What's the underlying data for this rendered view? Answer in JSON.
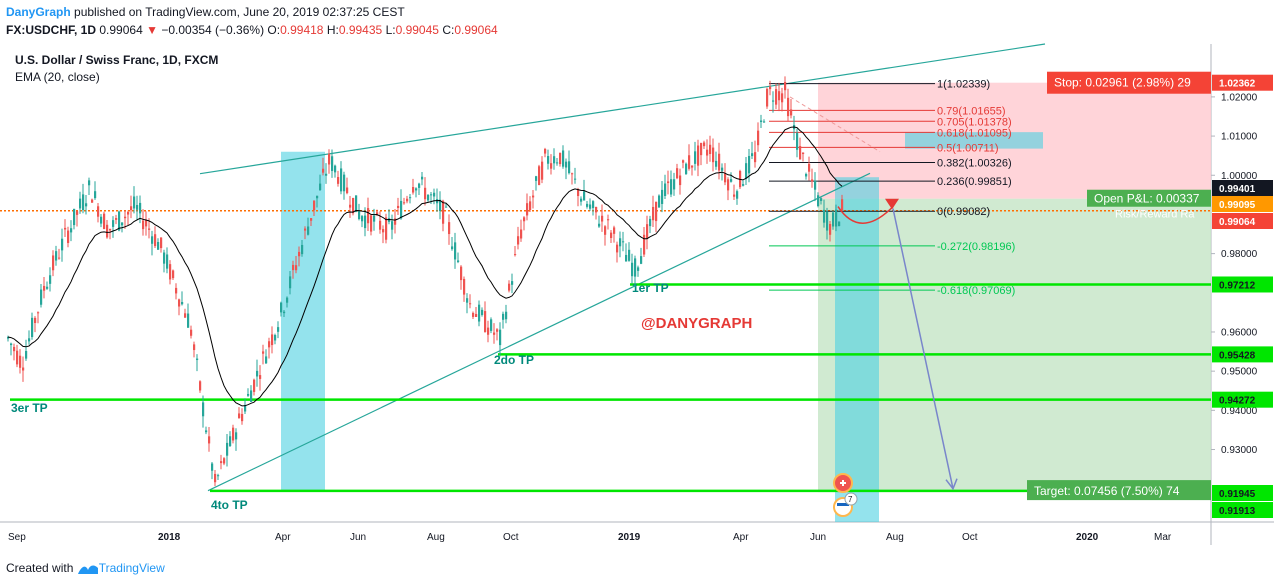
{
  "header": {
    "author": "DanyGraph",
    "published_text": " published on TradingView.com, June 20, 2019 02:37:25 CEST",
    "symbol": "FX:USDCHF, 1D",
    "last": "0.99064",
    "change": "−0.00354 (−0.36%)",
    "open_label": "O:",
    "open": "0.99418",
    "high_label": "H:",
    "high": "0.99435",
    "low_label": "L:",
    "low": "0.99045",
    "close_label": "C:",
    "close": "0.99064"
  },
  "footer": {
    "created_with": "Created with",
    "brand": "TradingView"
  },
  "colors": {
    "up": "#26a69a",
    "down": "#ef5350",
    "ema": "#000000",
    "trend": "#26a69a",
    "tp_line": "#00e600",
    "current": "#ff6d00",
    "stop_zone": "#ffcdd2",
    "target_zone": "#c8e6c9",
    "highlight": "#4dd0e1",
    "arrow": "#7986cb",
    "watermark": "#e53935",
    "label_green": "#4caf50",
    "label_red": "#f44336"
  },
  "chart_data": {
    "type": "candlestick",
    "title": "U.S. Dollar / Swiss Franc, 1D, FXCM",
    "indicator": "EMA (20, close)",
    "ylim": [
      0.9115,
      1.0335
    ],
    "x_ticks": [
      "Sep",
      "2018",
      "Apr",
      "Jun",
      "Aug",
      "Oct",
      "2019",
      "Apr",
      "Jun",
      "Aug",
      "Oct",
      "2020",
      "Mar"
    ],
    "y_ticks": [
      "1.02000",
      "1.01000",
      "1.00000",
      "0.98000",
      "0.96000",
      "0.95000",
      "0.94000",
      "0.93000"
    ],
    "price_path": [
      [
        0,
        0.962
      ],
      [
        22,
        0.952
      ],
      [
        45,
        0.972
      ],
      [
        65,
        0.984
      ],
      [
        90,
        0.997
      ],
      [
        108,
        0.986
      ],
      [
        135,
        0.992
      ],
      [
        160,
        0.982
      ],
      [
        190,
        0.962
      ],
      [
        215,
        0.921
      ],
      [
        240,
        0.938
      ],
      [
        280,
        0.964
      ],
      [
        315,
        0.993
      ],
      [
        330,
        1.004
      ],
      [
        360,
        0.99
      ],
      [
        390,
        0.986
      ],
      [
        415,
        0.999
      ],
      [
        445,
        0.99
      ],
      [
        470,
        0.967
      ],
      [
        500,
        0.958
      ],
      [
        520,
        0.985
      ],
      [
        545,
        1.004
      ],
      [
        560,
        1.005
      ],
      [
        585,
        0.993
      ],
      [
        610,
        0.986
      ],
      [
        635,
        0.976
      ],
      [
        660,
        0.994
      ],
      [
        688,
        1.003
      ],
      [
        710,
        1.007
      ],
      [
        735,
        0.996
      ],
      [
        755,
        1.005
      ],
      [
        768,
        1.021
      ],
      [
        785,
        1.021
      ],
      [
        800,
        1.006
      ],
      [
        818,
        0.994
      ],
      [
        830,
        0.987
      ],
      [
        842,
        0.991
      ]
    ],
    "levels": [
      {
        "price": 0.97212,
        "label": "1er TP"
      },
      {
        "price": 0.95428,
        "label": "2do TP"
      },
      {
        "price": 0.94272,
        "label": "3er TP"
      },
      {
        "price": 0.91945,
        "label": "4to TP"
      }
    ],
    "fibonacci": [
      {
        "ratio": "1",
        "price": 1.02339,
        "text": "1(1.02339)"
      },
      {
        "ratio": "0.79",
        "price": 1.01655,
        "text": "0.79(1.01655)"
      },
      {
        "ratio": "0.705",
        "price": 1.01378,
        "text": "0.705(1.01378)"
      },
      {
        "ratio": "0.618",
        "price": 1.01095,
        "text": "0.618(1.01095)"
      },
      {
        "ratio": "0.5",
        "price": 1.00711,
        "text": "0.5(1.00711)"
      },
      {
        "ratio": "0.382",
        "price": 1.00326,
        "text": "0.382(1.00326)"
      },
      {
        "ratio": "0.236",
        "price": 0.99851,
        "text": "0.236(0.99851)"
      },
      {
        "ratio": "0",
        "price": 0.99082,
        "text": "0(0.99082)"
      },
      {
        "ratio": "-0.272",
        "price": 0.98196,
        "text": "-0.272(0.98196)"
      },
      {
        "ratio": "-0.618",
        "price": 0.97069,
        "text": "-0.618(0.97069)"
      }
    ],
    "position": {
      "stop_price": 1.02362,
      "target_price": 0.91913,
      "stop_text": "Stop: 0.02961 (2.98%) 29",
      "target_text": "Target: 0.07456 (7.50%) 74",
      "open_pl_text": "Open P&L: 0.00337",
      "risk_reward_text": "Risk/Reward Ra"
    },
    "price_labels": [
      {
        "price": 1.02362,
        "text": "1.02362",
        "style": "red"
      },
      {
        "price": 0.99401,
        "text": "0.99401",
        "style": "dark"
      },
      {
        "price": 0.99095,
        "text": "0.99095",
        "style": "orange"
      },
      {
        "price": 0.99064,
        "text": "0.99064",
        "style": "red"
      },
      {
        "price": 0.97212,
        "text": "0.97212",
        "style": "green"
      },
      {
        "price": 0.95428,
        "text": "0.95428",
        "style": "green"
      },
      {
        "price": 0.94272,
        "text": "0.94272",
        "style": "green"
      },
      {
        "price": 0.91945,
        "text": "0.91945",
        "style": "green"
      },
      {
        "price": 0.91913,
        "text": "0.91913",
        "style": "green"
      }
    ],
    "current_price": 0.99095,
    "watermark": "@DANYGRAPH",
    "event_badge_count": "7"
  }
}
